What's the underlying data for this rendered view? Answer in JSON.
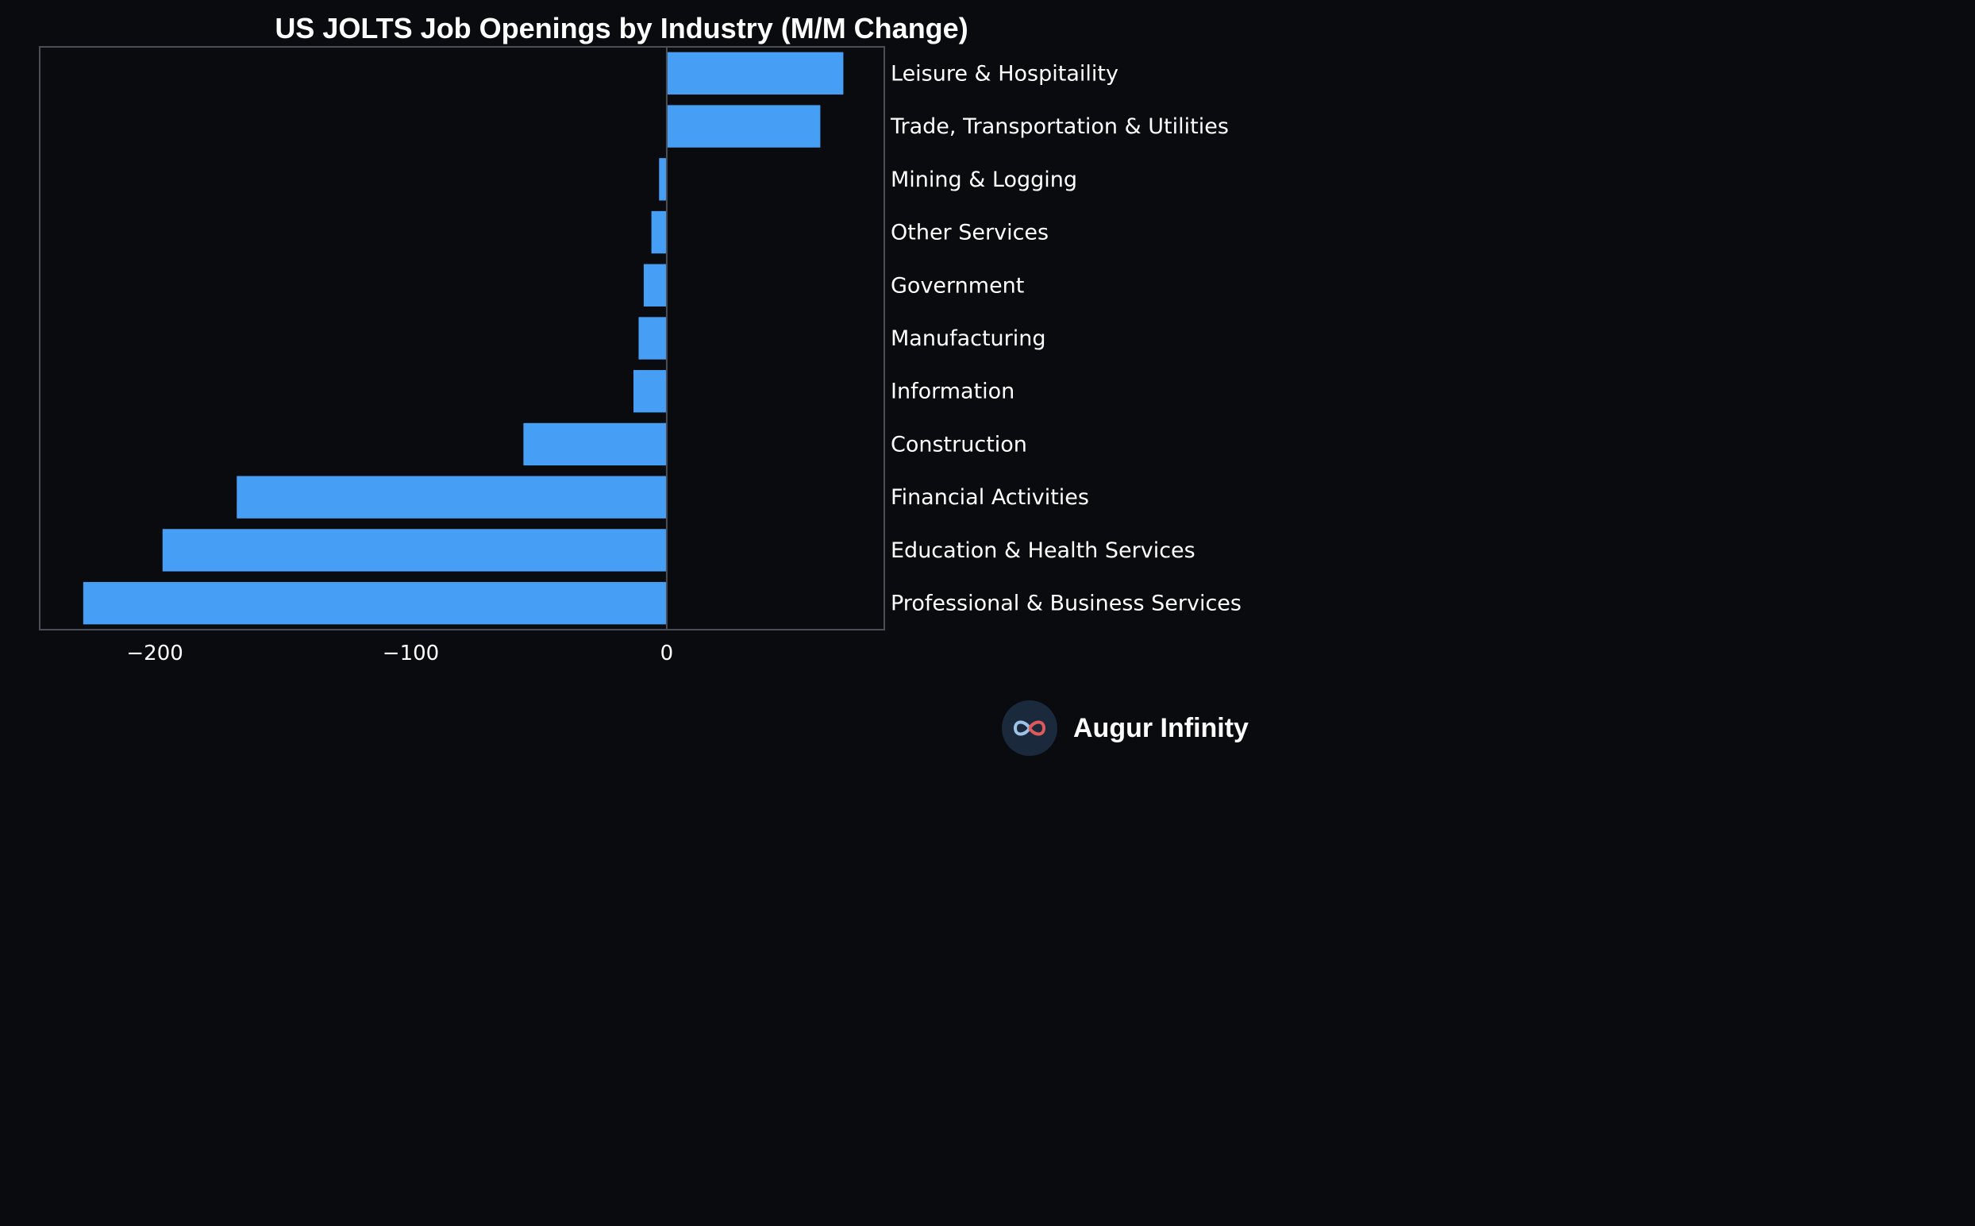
{
  "chart_data": {
    "type": "bar",
    "orientation": "horizontal",
    "title": "US JOLTS Job Openings by Industry (M/M Change)",
    "categories": [
      "Leisure & Hospitaility",
      "Trade, Transportation & Utilities",
      "Mining & Logging",
      "Other Services",
      "Government",
      "Manufacturing",
      "Information",
      "Construction",
      "Financial Activities",
      "Education & Health Services",
      "Professional & Business Services"
    ],
    "values": [
      69,
      60,
      -3,
      -6,
      -9,
      -11,
      -13,
      -56,
      -168,
      -197,
      -228
    ],
    "xlim": [
      -245,
      85
    ],
    "xticks": [
      -200,
      -100,
      0
    ],
    "xtick_labels": [
      "−200",
      "−100",
      "0"
    ],
    "xlabel": "",
    "ylabel": "",
    "grid": false,
    "legend": "none",
    "bar_color": "#479ef5",
    "background_color": "#0a0b0e",
    "frame_color": "#4a4e56"
  },
  "brand": {
    "name": "Augur Infinity",
    "icon": "infinity-logo-icon"
  }
}
